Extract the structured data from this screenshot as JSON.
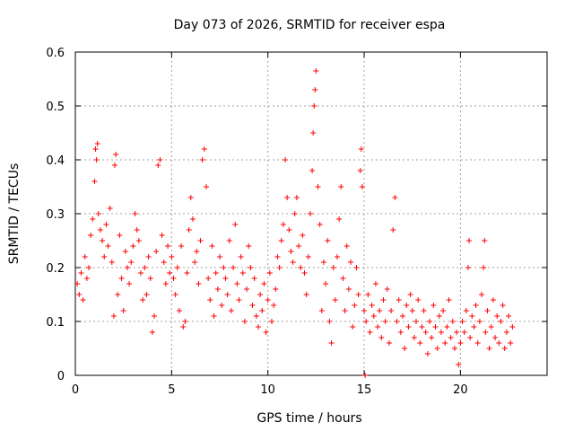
{
  "chart_data": {
    "type": "scatter",
    "title": "Day 073 of 2026, SRMTID for receiver espa",
    "xlabel": "GPS time / hours",
    "ylabel": "SRMTID / TECUs",
    "xlim": [
      0,
      24.5
    ],
    "ylim": [
      0,
      0.6
    ],
    "x_ticks": [
      0,
      5,
      10,
      15,
      20
    ],
    "y_ticks": [
      0,
      0.1,
      0.2,
      0.3,
      0.4,
      0.5,
      0.6
    ],
    "x_tick_labels": [
      "0",
      "5",
      "10",
      "15",
      "20"
    ],
    "y_tick_labels": [
      "0",
      "0.1",
      "0.2",
      "0.3",
      "0.4",
      "0.5",
      "0.6"
    ],
    "grid": true,
    "marker": "+",
    "color": "#ff0000",
    "series": [
      {
        "name": "SRMTID",
        "points": [
          [
            0.1,
            0.17
          ],
          [
            0.2,
            0.15
          ],
          [
            0.3,
            0.19
          ],
          [
            0.4,
            0.14
          ],
          [
            0.5,
            0.22
          ],
          [
            0.6,
            0.18
          ],
          [
            0.7,
            0.2
          ],
          [
            0.8,
            0.26
          ],
          [
            0.9,
            0.29
          ],
          [
            1.0,
            0.36
          ],
          [
            1.05,
            0.42
          ],
          [
            1.1,
            0.4
          ],
          [
            1.15,
            0.43
          ],
          [
            1.2,
            0.3
          ],
          [
            1.3,
            0.27
          ],
          [
            1.4,
            0.25
          ],
          [
            1.5,
            0.22
          ],
          [
            1.6,
            0.28
          ],
          [
            1.7,
            0.24
          ],
          [
            1.8,
            0.31
          ],
          [
            1.9,
            0.21
          ],
          [
            2.0,
            0.11
          ],
          [
            2.05,
            0.39
          ],
          [
            2.1,
            0.41
          ],
          [
            2.2,
            0.15
          ],
          [
            2.3,
            0.26
          ],
          [
            2.4,
            0.18
          ],
          [
            2.5,
            0.12
          ],
          [
            2.6,
            0.23
          ],
          [
            2.7,
            0.2
          ],
          [
            2.8,
            0.17
          ],
          [
            2.9,
            0.21
          ],
          [
            3.0,
            0.24
          ],
          [
            3.1,
            0.3
          ],
          [
            3.2,
            0.27
          ],
          [
            3.3,
            0.25
          ],
          [
            3.4,
            0.19
          ],
          [
            3.5,
            0.14
          ],
          [
            3.6,
            0.2
          ],
          [
            3.7,
            0.15
          ],
          [
            3.8,
            0.22
          ],
          [
            3.9,
            0.18
          ],
          [
            4.0,
            0.08
          ],
          [
            4.1,
            0.11
          ],
          [
            4.2,
            0.23
          ],
          [
            4.3,
            0.39
          ],
          [
            4.4,
            0.4
          ],
          [
            4.5,
            0.26
          ],
          [
            4.6,
            0.21
          ],
          [
            4.7,
            0.17
          ],
          [
            4.8,
            0.24
          ],
          [
            4.9,
            0.19
          ],
          [
            5.0,
            0.22
          ],
          [
            5.1,
            0.18
          ],
          [
            5.2,
            0.15
          ],
          [
            5.3,
            0.2
          ],
          [
            5.4,
            0.12
          ],
          [
            5.5,
            0.24
          ],
          [
            5.6,
            0.09
          ],
          [
            5.7,
            0.1
          ],
          [
            5.8,
            0.19
          ],
          [
            5.9,
            0.27
          ],
          [
            6.0,
            0.33
          ],
          [
            6.1,
            0.29
          ],
          [
            6.2,
            0.21
          ],
          [
            6.3,
            0.23
          ],
          [
            6.4,
            0.17
          ],
          [
            6.5,
            0.25
          ],
          [
            6.6,
            0.4
          ],
          [
            6.7,
            0.42
          ],
          [
            6.8,
            0.35
          ],
          [
            6.9,
            0.18
          ],
          [
            7.0,
            0.14
          ],
          [
            7.1,
            0.24
          ],
          [
            7.2,
            0.11
          ],
          [
            7.3,
            0.19
          ],
          [
            7.4,
            0.16
          ],
          [
            7.5,
            0.22
          ],
          [
            7.6,
            0.13
          ],
          [
            7.7,
            0.2
          ],
          [
            7.8,
            0.18
          ],
          [
            7.9,
            0.15
          ],
          [
            8.0,
            0.25
          ],
          [
            8.1,
            0.12
          ],
          [
            8.2,
            0.2
          ],
          [
            8.3,
            0.28
          ],
          [
            8.4,
            0.17
          ],
          [
            8.5,
            0.14
          ],
          [
            8.6,
            0.22
          ],
          [
            8.7,
            0.19
          ],
          [
            8.8,
            0.1
          ],
          [
            8.9,
            0.16
          ],
          [
            9.0,
            0.24
          ],
          [
            9.1,
            0.2
          ],
          [
            9.2,
            0.13
          ],
          [
            9.3,
            0.18
          ],
          [
            9.4,
            0.11
          ],
          [
            9.5,
            0.09
          ],
          [
            9.6,
            0.15
          ],
          [
            9.7,
            0.12
          ],
          [
            9.8,
            0.17
          ],
          [
            9.9,
            0.08
          ],
          [
            10.0,
            0.14
          ],
          [
            10.1,
            0.19
          ],
          [
            10.2,
            0.1
          ],
          [
            10.3,
            0.13
          ],
          [
            10.4,
            0.16
          ],
          [
            10.5,
            0.22
          ],
          [
            10.6,
            0.2
          ],
          [
            10.7,
            0.25
          ],
          [
            10.8,
            0.28
          ],
          [
            10.9,
            0.4
          ],
          [
            11.0,
            0.33
          ],
          [
            11.1,
            0.27
          ],
          [
            11.2,
            0.23
          ],
          [
            11.3,
            0.21
          ],
          [
            11.4,
            0.3
          ],
          [
            11.5,
            0.33
          ],
          [
            11.6,
            0.24
          ],
          [
            11.7,
            0.2
          ],
          [
            11.8,
            0.26
          ],
          [
            11.9,
            0.19
          ],
          [
            12.0,
            0.15
          ],
          [
            12.1,
            0.22
          ],
          [
            12.2,
            0.3
          ],
          [
            12.3,
            0.38
          ],
          [
            12.35,
            0.45
          ],
          [
            12.4,
            0.5
          ],
          [
            12.45,
            0.53
          ],
          [
            12.5,
            0.565
          ],
          [
            12.6,
            0.35
          ],
          [
            12.7,
            0.28
          ],
          [
            12.8,
            0.12
          ],
          [
            12.9,
            0.21
          ],
          [
            13.0,
            0.17
          ],
          [
            13.1,
            0.25
          ],
          [
            13.2,
            0.1
          ],
          [
            13.3,
            0.06
          ],
          [
            13.4,
            0.2
          ],
          [
            13.5,
            0.14
          ],
          [
            13.6,
            0.22
          ],
          [
            13.7,
            0.29
          ],
          [
            13.8,
            0.35
          ],
          [
            13.9,
            0.18
          ],
          [
            14.0,
            0.12
          ],
          [
            14.1,
            0.24
          ],
          [
            14.2,
            0.16
          ],
          [
            14.3,
            0.21
          ],
          [
            14.4,
            0.09
          ],
          [
            14.5,
            0.13
          ],
          [
            14.6,
            0.2
          ],
          [
            14.7,
            0.15
          ],
          [
            14.8,
            0.38
          ],
          [
            14.85,
            0.42
          ],
          [
            14.9,
            0.35
          ],
          [
            15.0,
            0.12
          ],
          [
            15.05,
            0.0
          ],
          [
            15.1,
            0.1
          ],
          [
            15.2,
            0.15
          ],
          [
            15.3,
            0.08
          ],
          [
            15.4,
            0.13
          ],
          [
            15.5,
            0.11
          ],
          [
            15.6,
            0.17
          ],
          [
            15.7,
            0.09
          ],
          [
            15.8,
            0.12
          ],
          [
            15.9,
            0.07
          ],
          [
            16.0,
            0.14
          ],
          [
            16.1,
            0.1
          ],
          [
            16.2,
            0.16
          ],
          [
            16.3,
            0.06
          ],
          [
            16.4,
            0.12
          ],
          [
            16.5,
            0.27
          ],
          [
            16.6,
            0.33
          ],
          [
            16.7,
            0.1
          ],
          [
            16.8,
            0.14
          ],
          [
            16.9,
            0.08
          ],
          [
            17.0,
            0.11
          ],
          [
            17.1,
            0.05
          ],
          [
            17.2,
            0.13
          ],
          [
            17.3,
            0.09
          ],
          [
            17.4,
            0.15
          ],
          [
            17.5,
            0.12
          ],
          [
            17.6,
            0.07
          ],
          [
            17.7,
            0.1
          ],
          [
            17.8,
            0.14
          ],
          [
            17.9,
            0.06
          ],
          [
            18.0,
            0.09
          ],
          [
            18.1,
            0.12
          ],
          [
            18.2,
            0.08
          ],
          [
            18.3,
            0.04
          ],
          [
            18.4,
            0.1
          ],
          [
            18.5,
            0.07
          ],
          [
            18.6,
            0.13
          ],
          [
            18.7,
            0.09
          ],
          [
            18.8,
            0.05
          ],
          [
            18.9,
            0.11
          ],
          [
            19.0,
            0.08
          ],
          [
            19.1,
            0.12
          ],
          [
            19.2,
            0.06
          ],
          [
            19.3,
            0.09
          ],
          [
            19.4,
            0.14
          ],
          [
            19.5,
            0.07
          ],
          [
            19.6,
            0.1
          ],
          [
            19.7,
            0.05
          ],
          [
            19.8,
            0.08
          ],
          [
            19.9,
            0.02
          ],
          [
            20.0,
            0.06
          ],
          [
            20.1,
            0.1
          ],
          [
            20.2,
            0.08
          ],
          [
            20.3,
            0.12
          ],
          [
            20.4,
            0.2
          ],
          [
            20.45,
            0.25
          ],
          [
            20.5,
            0.07
          ],
          [
            20.6,
            0.11
          ],
          [
            20.7,
            0.09
          ],
          [
            20.8,
            0.13
          ],
          [
            20.9,
            0.06
          ],
          [
            21.0,
            0.1
          ],
          [
            21.1,
            0.15
          ],
          [
            21.2,
            0.2
          ],
          [
            21.25,
            0.25
          ],
          [
            21.3,
            0.08
          ],
          [
            21.4,
            0.12
          ],
          [
            21.5,
            0.05
          ],
          [
            21.6,
            0.09
          ],
          [
            21.7,
            0.14
          ],
          [
            21.8,
            0.07
          ],
          [
            21.9,
            0.11
          ],
          [
            22.0,
            0.06
          ],
          [
            22.1,
            0.1
          ],
          [
            22.2,
            0.13
          ],
          [
            22.3,
            0.05
          ],
          [
            22.4,
            0.08
          ],
          [
            22.5,
            0.11
          ],
          [
            22.6,
            0.06
          ],
          [
            22.7,
            0.09
          ]
        ]
      }
    ]
  }
}
